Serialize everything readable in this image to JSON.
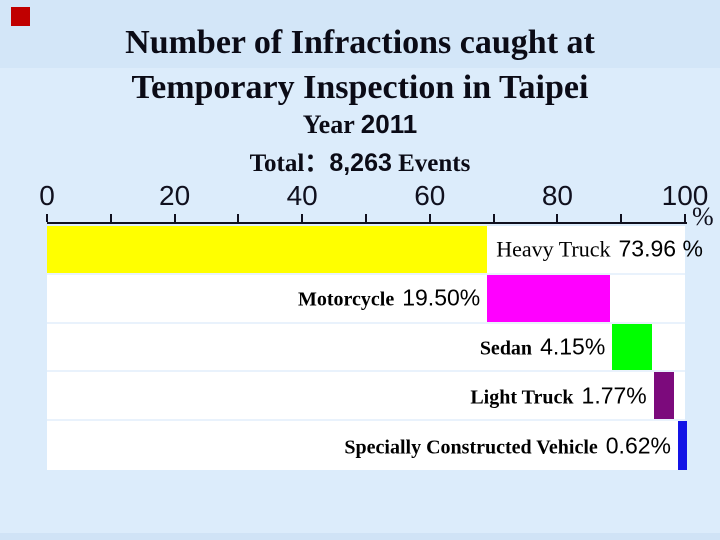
{
  "slide": {
    "background_color": "#DCECFB",
    "top_band_color": "#D3E6F8",
    "decor_square_color": "#C00000",
    "title_line1": "Number of Infractions caught at",
    "title_line2": "Temporary Inspection in Taipei",
    "year_label": "Year",
    "year_value": "2011",
    "total_label": "Total",
    "total_colon": "：",
    "total_value": "8,263",
    "total_unit": "Events"
  },
  "chart_data": {
    "type": "bar",
    "subtype": "horizontal-cascade",
    "title": "Number of Infractions caught at Temporary Inspection in Taipei",
    "year": 2011,
    "total_events": 8263,
    "categories": [
      "Heavy Truck",
      "Motorcycle",
      "Sedan",
      "Light Truck",
      "Specially Constructed Vehicle"
    ],
    "values": [
      73.96,
      19.5,
      4.15,
      1.77,
      0.62
    ],
    "value_labels": [
      "73.96 %",
      "19.50%",
      "4.15%",
      "1.77%",
      "0.62%"
    ],
    "bar_colors": [
      "#FFFF00",
      "#FF00FF",
      "#00FF00",
      "#7C0A7C",
      "#1414E6"
    ],
    "xlim": [
      0,
      100
    ],
    "x_ticks": [
      0,
      20,
      40,
      60,
      80,
      100
    ],
    "minor_tick_step": 10,
    "axis_unit": "%",
    "bar_drawn_extents_pct": [
      [
        0,
        69.0
      ],
      [
        69.0,
        88.3
      ],
      [
        88.6,
        94.9
      ],
      [
        95.1,
        98.2
      ],
      [
        98.9,
        100.3
      ]
    ],
    "plot_background": "#FFFFFF",
    "row_separator_color": "#E9F2FC",
    "axis_color": "#10101E",
    "label_text_color": "#000000",
    "grid": false,
    "legend": false
  }
}
